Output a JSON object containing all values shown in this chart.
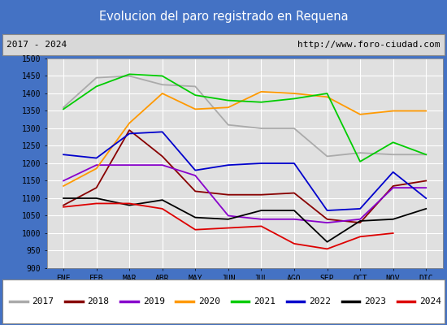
{
  "title": "Evolucion del paro registrado en Requena",
  "subtitle_left": "2017 - 2024",
  "subtitle_right": "http://www.foro-ciudad.com",
  "months": [
    "ENE",
    "FEB",
    "MAR",
    "ABR",
    "MAY",
    "JUN",
    "JUL",
    "AGO",
    "SEP",
    "OCT",
    "NOV",
    "DIC"
  ],
  "ylim": [
    900,
    1500
  ],
  "yticks": [
    900,
    950,
    1000,
    1050,
    1100,
    1150,
    1200,
    1250,
    1300,
    1350,
    1400,
    1450,
    1500
  ],
  "series": {
    "2017": {
      "color": "#aaaaaa",
      "values": [
        1360,
        1445,
        1450,
        1425,
        1420,
        1310,
        1300,
        1300,
        1220,
        1230,
        1225,
        1225
      ]
    },
    "2018": {
      "color": "#880000",
      "values": [
        1080,
        1130,
        1295,
        1220,
        1120,
        1110,
        1110,
        1115,
        1040,
        1030,
        1135,
        1150
      ]
    },
    "2019": {
      "color": "#8800cc",
      "values": [
        1150,
        1195,
        1195,
        1195,
        1165,
        1050,
        1040,
        1040,
        1030,
        1040,
        1130,
        1130
      ]
    },
    "2020": {
      "color": "#ff9900",
      "values": [
        1135,
        1185,
        1315,
        1400,
        1355,
        1360,
        1405,
        1400,
        1390,
        1340,
        1350,
        1350
      ]
    },
    "2021": {
      "color": "#00cc00",
      "values": [
        1355,
        1420,
        1455,
        1450,
        1395,
        1380,
        1375,
        1385,
        1400,
        1205,
        1260,
        1225
      ]
    },
    "2022": {
      "color": "#0000cc",
      "values": [
        1225,
        1215,
        1285,
        1290,
        1180,
        1195,
        1200,
        1200,
        1065,
        1070,
        1175,
        1100
      ]
    },
    "2023": {
      "color": "#000000",
      "values": [
        1100,
        1100,
        1080,
        1095,
        1045,
        1040,
        1065,
        1065,
        975,
        1035,
        1040,
        1070
      ]
    },
    "2024": {
      "color": "#dd0000",
      "values": [
        1075,
        1085,
        1085,
        1070,
        1010,
        1015,
        1020,
        970,
        955,
        990,
        1000,
        null
      ]
    }
  },
  "title_bg": "#4472c4",
  "title_color": "#ffffff",
  "plot_bg": "#e0e0e0",
  "header_bg": "#d8d8d8",
  "outer_bg": "#4472c4"
}
